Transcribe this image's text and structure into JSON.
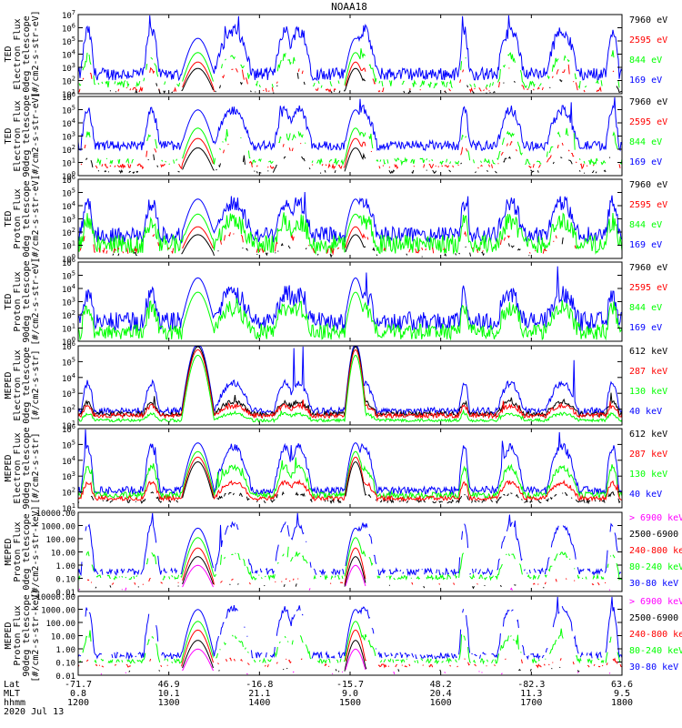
{
  "title": "NOAA18",
  "colors": {
    "blue": "#0000ff",
    "red": "#ff0000",
    "green": "#00ff00",
    "black": "#000000",
    "magenta": "#ff00ff"
  },
  "time_axis": {
    "x_ticks": [
      "1200",
      "1300",
      "1400",
      "1500",
      "1600",
      "1700",
      "1800"
    ],
    "lat": [
      "-71.7",
      "46.9",
      "-16.8",
      "-15.7",
      "48.2",
      "-82.3",
      "63.6"
    ],
    "mlt": [
      "0.8",
      "10.1",
      "21.1",
      "9.0",
      "20.4",
      "11.3",
      "9.5"
    ],
    "row_labels": {
      "lat": "Lat",
      "mlt": "MLT",
      "hhmm": "hhmm"
    },
    "date": "2020 Jul 13"
  },
  "chart_data": [
    {
      "type": "line",
      "ylabel": [
        "TED",
        "Electron Flux",
        "0deg telescope",
        "[#/cm2-s-str-eV]"
      ],
      "ylim_log": [
        1,
        7
      ],
      "y_ticks": [
        "10^1",
        "10^2",
        "10^3",
        "10^4",
        "10^5",
        "10^6",
        "10^7"
      ],
      "legend": [
        {
          "text": "7960 eV",
          "color": "black"
        },
        {
          "text": "2595 eV",
          "color": "red"
        },
        {
          "text": "844 eV",
          "color": "green"
        },
        {
          "text": "169 eV",
          "color": "blue"
        }
      ]
    },
    {
      "type": "line",
      "ylabel": [
        "TED",
        "Electron Flux",
        "90deg telescope",
        "[#/cm2-s-str-eV]"
      ],
      "ylim_log": [
        0,
        6
      ],
      "y_ticks": [
        "10^0",
        "10^1",
        "10^2",
        "10^3",
        "10^4",
        "10^5",
        "10^6"
      ],
      "legend": [
        {
          "text": "7960 eV",
          "color": "black"
        },
        {
          "text": "2595 eV",
          "color": "red"
        },
        {
          "text": "844 eV",
          "color": "green"
        },
        {
          "text": "169 eV",
          "color": "blue"
        }
      ]
    },
    {
      "type": "line",
      "ylabel": [
        "TED",
        "Proton Flux",
        "0deg telescope",
        "[#/cm2-s-str-eV]"
      ],
      "ylim_log": [
        0,
        6
      ],
      "y_ticks": [
        "10^0",
        "10^1",
        "10^2",
        "10^3",
        "10^4",
        "10^5",
        "10^6"
      ],
      "legend": [
        {
          "text": "7960 eV",
          "color": "black"
        },
        {
          "text": "2595 eV",
          "color": "red"
        },
        {
          "text": "844 eV",
          "color": "green"
        },
        {
          "text": "169 eV",
          "color": "blue"
        }
      ]
    },
    {
      "type": "line",
      "ylabel": [
        "TED",
        "Proton Flux",
        "90deg telescope",
        "[#/cm2-s-str-eV]"
      ],
      "ylim_log": [
        0,
        6
      ],
      "y_ticks": [
        "10^0",
        "10^1",
        "10^2",
        "10^3",
        "10^4",
        "10^5",
        "10^6"
      ],
      "legend": [
        {
          "text": "7960 eV",
          "color": "black"
        },
        {
          "text": "2595 eV",
          "color": "red"
        },
        {
          "text": "844 eV",
          "color": "green"
        },
        {
          "text": "169 eV",
          "color": "blue"
        }
      ]
    },
    {
      "type": "line",
      "ylabel": [
        "MEPED",
        "Electron Flux",
        "0deg telescope",
        "[#/cm2-s-str]"
      ],
      "ylim_log": [
        1,
        6
      ],
      "y_ticks": [
        "10^1",
        "10^2",
        "10^3",
        "10^4",
        "10^5",
        "10^6"
      ],
      "legend": [
        {
          "text": "612 keV",
          "color": "black"
        },
        {
          "text": "287 keV",
          "color": "red"
        },
        {
          "text": "130 keV",
          "color": "green"
        },
        {
          "text": "40 keV",
          "color": "blue"
        }
      ]
    },
    {
      "type": "line",
      "ylabel": [
        "MEPED",
        "Electron Flux",
        "90deg telescope",
        "[#/cm2-s-str]"
      ],
      "ylim_log": [
        1,
        6
      ],
      "y_ticks": [
        "10^1",
        "10^2",
        "10^3",
        "10^4",
        "10^5",
        "10^6"
      ],
      "legend": [
        {
          "text": "612 keV",
          "color": "black"
        },
        {
          "text": "287 keV",
          "color": "red"
        },
        {
          "text": "130 keV",
          "color": "green"
        },
        {
          "text": "40 keV",
          "color": "blue"
        }
      ]
    },
    {
      "type": "line",
      "ylabel": [
        "MEPED",
        "Proton Flux",
        "0deg telescope",
        "[#/cm2-s-str-keV]"
      ],
      "ylim_log": [
        -2,
        4
      ],
      "y_ticks": [
        "0.01",
        "0.10",
        "1.00",
        "10.00",
        "100.00",
        "1000.00",
        "10000.00"
      ],
      "legend": [
        {
          "text": "> 6900 keV",
          "color": "magenta"
        },
        {
          "text": "2500-6900",
          "color": "black"
        },
        {
          "text": "240-800 ke",
          "color": "red"
        },
        {
          "text": "80-240 keV",
          "color": "green"
        },
        {
          "text": "30-80 keV",
          "color": "blue"
        }
      ]
    },
    {
      "type": "line",
      "ylabel": [
        "MEPED",
        "Proton Flux",
        "90deg telescope",
        "[#/cm2-s-str-keV]"
      ],
      "ylim_log": [
        -2,
        4
      ],
      "y_ticks": [
        "0.01",
        "0.10",
        "1.00",
        "10.00",
        "100.00",
        "1000.00",
        "10000.00"
      ],
      "legend": [
        {
          "text": "> 6900 keV",
          "color": "magenta"
        },
        {
          "text": "2500-6900",
          "color": "black"
        },
        {
          "text": "240-800 ke",
          "color": "red"
        },
        {
          "text": "80-240 keV",
          "color": "green"
        },
        {
          "text": "30-80 keV",
          "color": "blue"
        }
      ]
    }
  ]
}
